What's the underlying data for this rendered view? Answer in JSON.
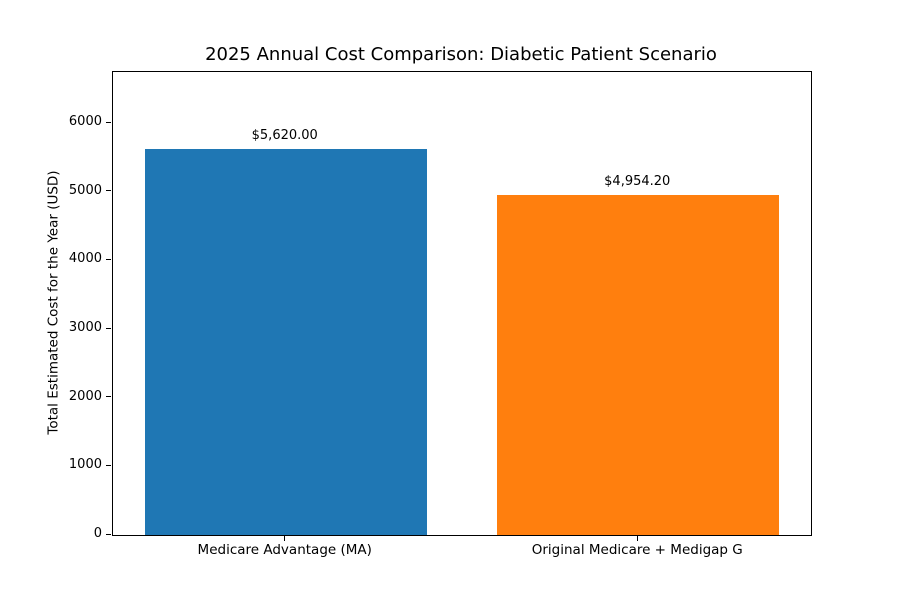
{
  "chart_data": {
    "type": "bar",
    "title": "2025 Annual Cost Comparison: Diabetic Patient Scenario",
    "xlabel": "",
    "ylabel": "Total Estimated Cost for the Year (USD)",
    "categories": [
      "Medicare Advantage (MA)",
      "Original Medicare + Medigap G"
    ],
    "values": [
      5620,
      4954.2
    ],
    "bar_labels": [
      "$5,620.00",
      "$4,954.20"
    ],
    "bar_colors": [
      "#1f77b4",
      "#ff7f0e"
    ],
    "ylim": [
      0,
      6744
    ],
    "yticks": [
      0,
      1000,
      2000,
      3000,
      4000,
      5000,
      6000
    ],
    "grid": false,
    "legend": "none",
    "background_color": "#ffffff",
    "spine_color": "#000000",
    "text_color": "#000000"
  }
}
